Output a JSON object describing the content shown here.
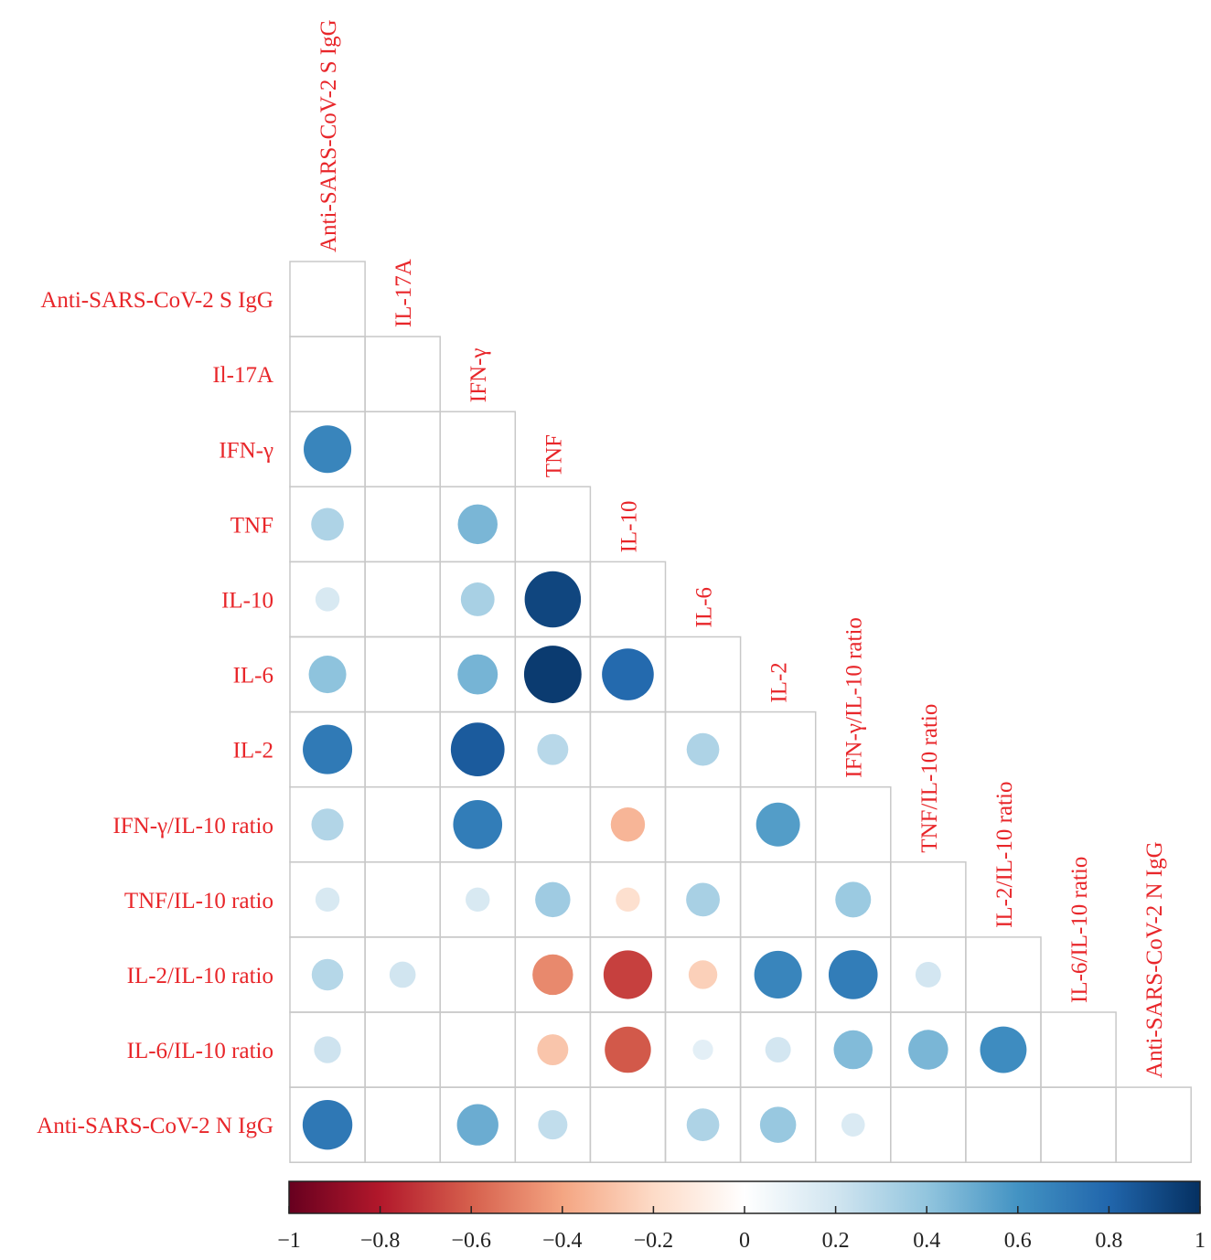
{
  "chart_data": {
    "type": "correlation-matrix",
    "shape": "lower-triangle circles",
    "row_labels": [
      "Anti-SARS-CoV-2 S IgG",
      "Il-17A",
      "IFN-γ",
      "TNF",
      "IL-10",
      "IL-6",
      "IL-2",
      "IFN-γ/IL-10 ratio",
      "TNF/IL-10 ratio",
      "IL-2/IL-10 ratio",
      "IL-6/IL-10 ratio",
      "Anti-SARS-CoV-2 N IgG"
    ],
    "column_labels": [
      "Anti-SARS-CoV-2 S IgG",
      "IL-17A",
      "IFN-γ",
      "TNF",
      "IL-10",
      "IL-6",
      "IL-2",
      "IFN-γ/IL-10 ratio",
      "TNF/IL-10 ratio",
      "IL-2/IL-10 ratio",
      "IL-6/IL-10 ratio",
      "Anti-SARS-CoV-2 N IgG"
    ],
    "correlations": [
      [
        null
      ],
      [
        null,
        null
      ],
      [
        0.66,
        null,
        null
      ],
      [
        0.31,
        null,
        0.46,
        null
      ],
      [
        0.17,
        null,
        0.33,
        0.92,
        null
      ],
      [
        0.41,
        null,
        0.47,
        0.96,
        0.78,
        null
      ],
      [
        0.71,
        null,
        0.84,
        0.28,
        null,
        0.31,
        null
      ],
      [
        0.3,
        null,
        0.7,
        null,
        -0.34,
        null,
        0.56,
        null
      ],
      [
        0.17,
        null,
        0.17,
        0.36,
        -0.17,
        0.33,
        null,
        0.37,
        null
      ],
      [
        0.29,
        0.2,
        null,
        -0.48,
        -0.69,
        -0.24,
        0.66,
        0.7,
        0.19,
        null
      ],
      [
        0.21,
        null,
        null,
        -0.28,
        -0.62,
        0.12,
        0.19,
        0.44,
        0.46,
        0.63,
        null
      ],
      [
        0.72,
        null,
        0.5,
        0.25,
        null,
        0.31,
        0.38,
        0.16,
        null,
        null,
        null,
        null
      ]
    ],
    "colorbar": {
      "ticks": [
        "−1",
        "−0.8",
        "−0.6",
        "−0.4",
        "−0.2",
        "0",
        "0.2",
        "0.4",
        "0.6",
        "0.8",
        "1"
      ],
      "range": [
        -1,
        1
      ]
    },
    "colors": {
      "label": "#e8262a",
      "grid": "#c8c8c8",
      "scale": [
        "#67001f",
        "#b2182b",
        "#d6604d",
        "#f4a582",
        "#fddbc7",
        "#ffffff",
        "#d1e5f0",
        "#92c5de",
        "#4393c3",
        "#2166ac",
        "#053061"
      ]
    }
  }
}
